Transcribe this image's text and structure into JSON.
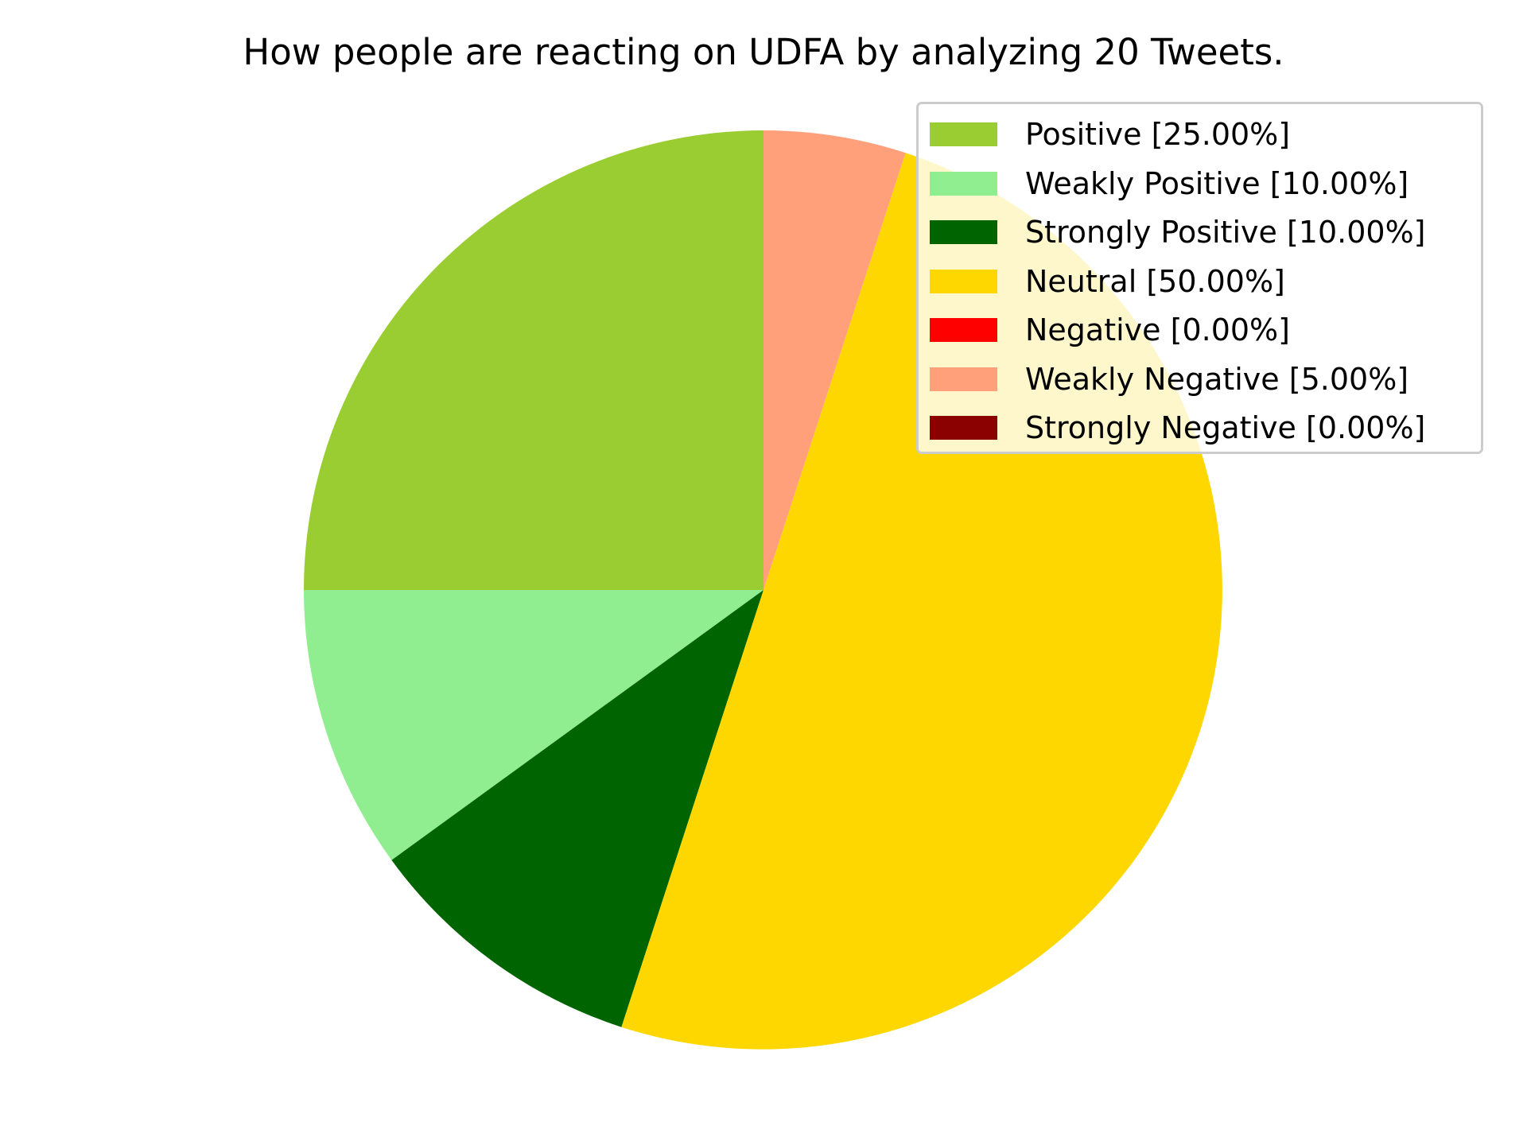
{
  "chart_data": {
    "type": "pie",
    "title": "How people are reacting on UDFA by analyzing 20 Tweets.",
    "legend_position": "top-right",
    "start_angle_deg": 90,
    "direction": "counterclockwise",
    "slices": [
      {
        "label": "Positive [25.00%]",
        "value": 25.0,
        "color": "#9ACD32"
      },
      {
        "label": "Weakly Positive [10.00%]",
        "value": 10.0,
        "color": "#90EE90"
      },
      {
        "label": "Strongly Positive [10.00%]",
        "value": 10.0,
        "color": "#006400"
      },
      {
        "label": "Neutral [50.00%]",
        "value": 50.0,
        "color": "#FFD700"
      },
      {
        "label": "Negative [0.00%]",
        "value": 0.0,
        "color": "#FF0000"
      },
      {
        "label": "Weakly Negative [5.00%]",
        "value": 5.0,
        "color": "#FFA07A"
      },
      {
        "label": "Strongly Negative [0.00%]",
        "value": 0.0,
        "color": "#8B0000"
      }
    ]
  }
}
